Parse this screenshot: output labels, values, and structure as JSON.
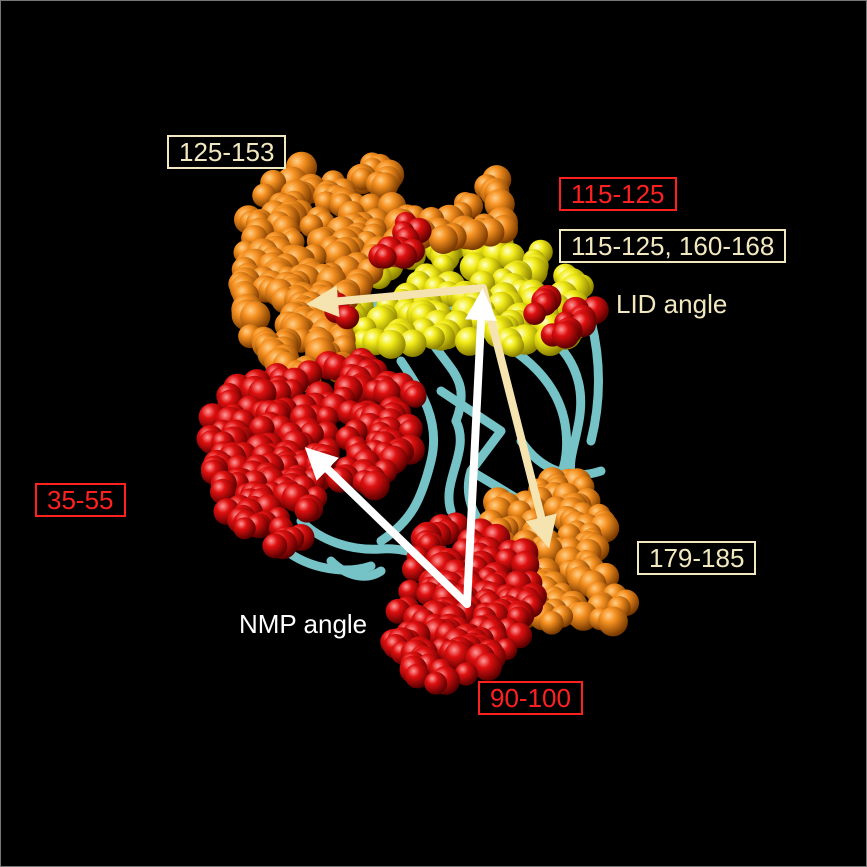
{
  "labels": {
    "r125_153": "125-153",
    "r115_125": "115-125",
    "r115_125_160_168": "115-125, 160-168",
    "r35_55": "35-55",
    "r179_185": "179-185",
    "r90_100": "90-100"
  },
  "annotations": {
    "lid_angle": "LID angle",
    "nmp_angle": "NMP angle"
  },
  "colors": {
    "background": "#000000",
    "ribbon": "#7fd3d8",
    "orange_domain": "#f08a10",
    "red_domain": "#e01010",
    "yellow_domain": "#f0ea10",
    "cream_label": "#f2e8c0",
    "red_label": "#ff2020",
    "white_arrow": "#ffffff",
    "cream_arrow": "#f5e3b0"
  }
}
